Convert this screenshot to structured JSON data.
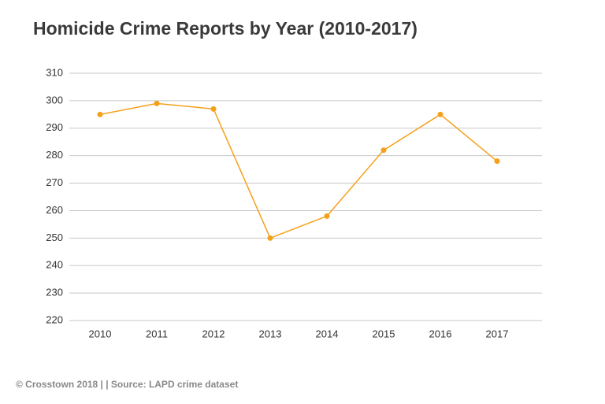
{
  "chart_data": {
    "type": "line",
    "title": "Homicide Crime Reports by Year (2010-2017)",
    "categories": [
      "2010",
      "2011",
      "2012",
      "2013",
      "2014",
      "2015",
      "2016",
      "2017"
    ],
    "values": [
      295,
      299,
      297,
      250,
      258,
      282,
      295,
      278
    ],
    "color": "#f5a01a",
    "ylim": [
      220,
      310
    ],
    "yticks": [
      220,
      230,
      240,
      250,
      260,
      270,
      280,
      290,
      300,
      310
    ],
    "grid": true,
    "source": "© Crosstown 2018 | | Source: LAPD crime dataset"
  }
}
